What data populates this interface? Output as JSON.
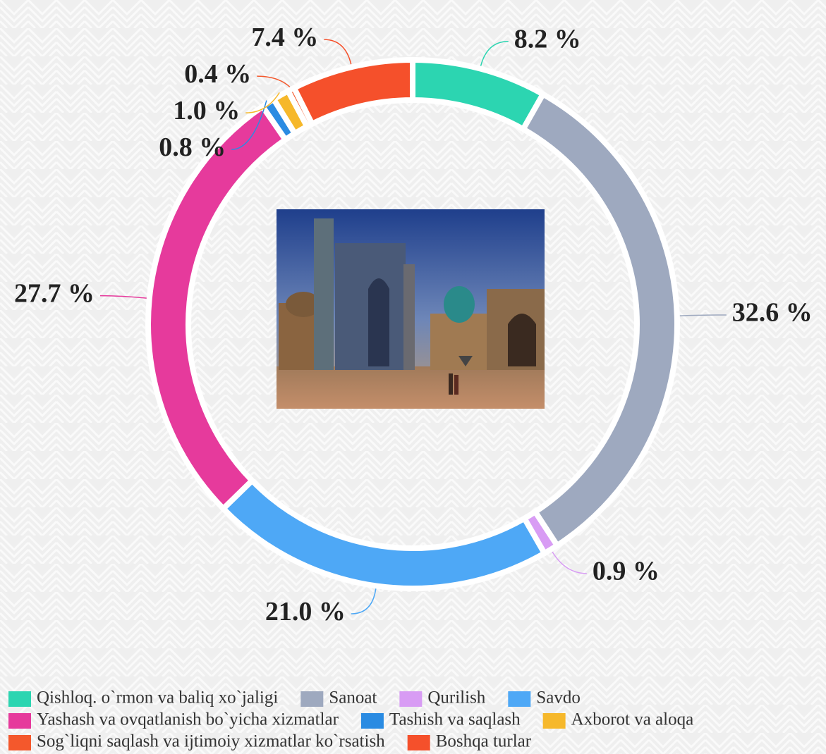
{
  "chart_data": {
    "type": "donut",
    "categories": [
      "Qishloq. o`rmon va baliq xo`jaligi",
      "Sanoat",
      "Qurilish",
      "Savdo",
      "Yashash va ovqatlanish bo`yicha xizmatlar",
      "Tashish va saqlash",
      "Axborot va aloqa",
      "Sog`liqni saqlash va ijtimoiy xizmatlar ko`rsatish",
      "Boshqa turlar"
    ],
    "values": [
      8.2,
      32.6,
      0.9,
      21.0,
      27.7,
      0.8,
      1.0,
      0.4,
      7.4
    ],
    "value_labels": [
      "8.2 %",
      "32.6 %",
      "0.9 %",
      "21.0 %",
      "27.7 %",
      "0.8 %",
      "1.0 %",
      "0.4 %",
      "7.4 %"
    ],
    "colors": [
      "#2cd5b1",
      "#9ea9bf",
      "#d89cf4",
      "#4ea8f6",
      "#e63a9c",
      "#2a8be2",
      "#f6b82b",
      "#f4582c",
      "#f5502b"
    ],
    "legend": "bottom"
  }
}
